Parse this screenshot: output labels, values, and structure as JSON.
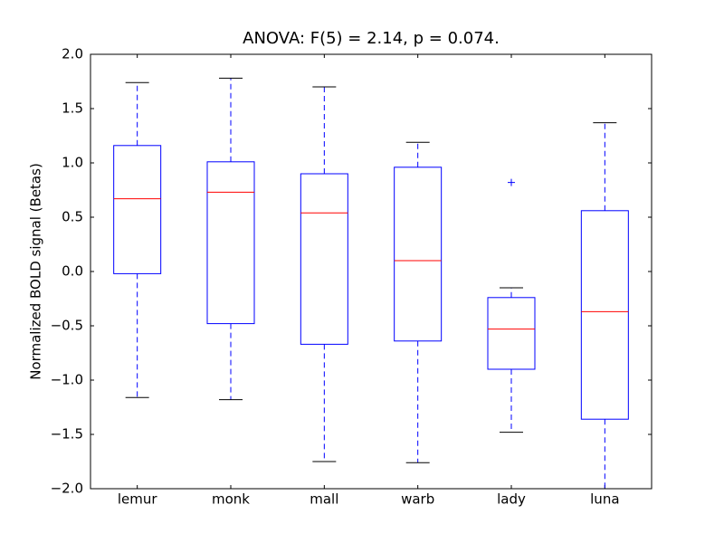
{
  "chart_data": {
    "type": "box",
    "title": "ANOVA: F(5) = 2.14, p = 0.074.",
    "y_label": "Normalized BOLD signal (Betas)",
    "categories": [
      "lemur",
      "monk",
      "mall",
      "warb",
      "lady",
      "luna"
    ],
    "boxes": [
      {
        "whislo": -1.16,
        "q1": -0.02,
        "med": 0.67,
        "q3": 1.16,
        "whishi": 1.74
      },
      {
        "whislo": -1.18,
        "q1": -0.48,
        "med": 0.73,
        "q3": 1.01,
        "whishi": 1.78
      },
      {
        "whislo": -1.75,
        "q1": -0.67,
        "med": 0.54,
        "q3": 0.9,
        "whishi": 1.7
      },
      {
        "whislo": -1.76,
        "q1": -0.64,
        "med": 0.1,
        "q3": 0.96,
        "whishi": 1.19
      },
      {
        "whislo": -1.48,
        "q1": -0.9,
        "med": -0.53,
        "q3": -0.24,
        "whishi": -0.15,
        "fliers": [
          0.82
        ]
      },
      {
        "whislo": -2.0,
        "q1": -1.36,
        "med": -0.37,
        "q3": 0.56,
        "whishi": 1.37
      }
    ],
    "box_color": "#0000ff",
    "median_color": "#ff0000",
    "cap_color": "#000000",
    "ylim": [
      -2.0,
      2.0
    ],
    "yticks": [
      {
        "value": -2.0,
        "label": "−2.0"
      },
      {
        "value": -1.5,
        "label": "−1.5"
      },
      {
        "value": -1.0,
        "label": "−1.0"
      },
      {
        "value": -0.5,
        "label": "−0.5"
      },
      {
        "value": 0.0,
        "label": "0.0"
      },
      {
        "value": 0.5,
        "label": "0.5"
      },
      {
        "value": 1.0,
        "label": "1.0"
      },
      {
        "value": 1.5,
        "label": "1.5"
      },
      {
        "value": 2.0,
        "label": "2.0"
      }
    ]
  }
}
